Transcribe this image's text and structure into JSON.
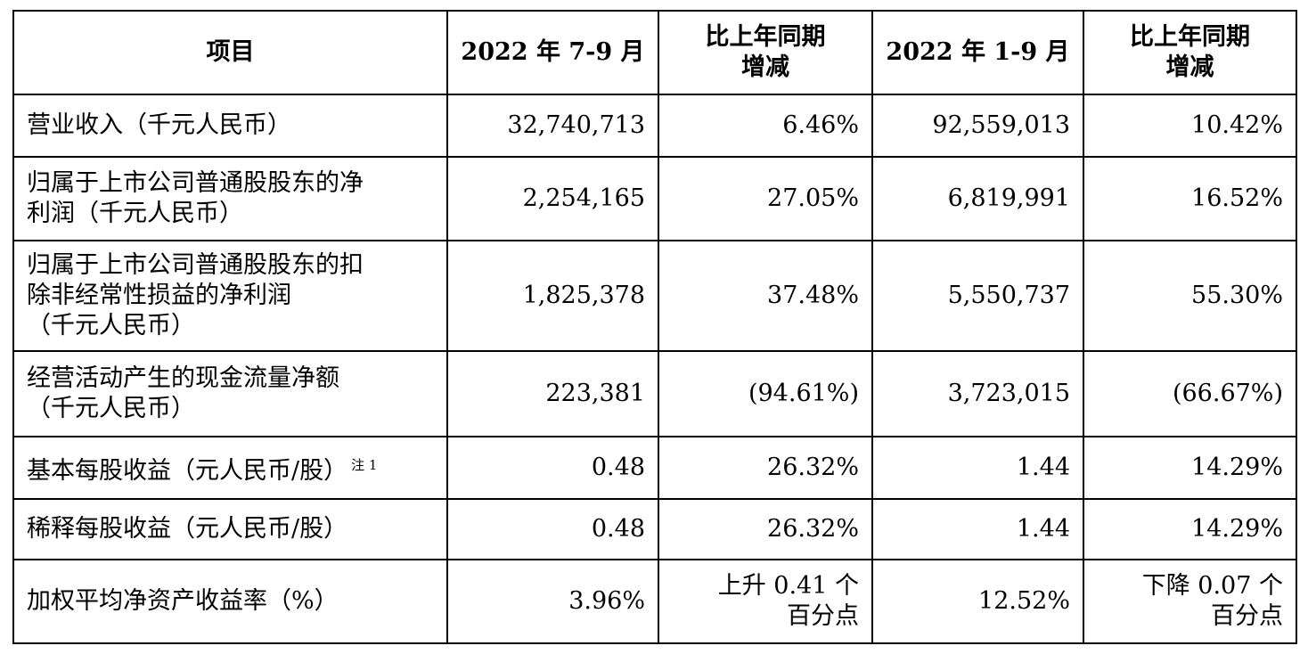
{
  "table": {
    "headers": [
      "项目",
      "2022 年 7-9 月",
      "比上年同期增减",
      "2022 年 1-9 月",
      "比上年同期增减"
    ],
    "header_lines": [
      [
        "项目"
      ],
      [
        "2022 年 7-9 月"
      ],
      [
        "比上年同期",
        "增减"
      ],
      [
        "2022 年 1-9 月"
      ],
      [
        "比上年同期",
        "增减"
      ]
    ],
    "rows": [
      {
        "item": "营业收入（千元人民币）",
        "q3": "32,740,713",
        "q3_change": "6.46%",
        "ytd": "92,559,013",
        "ytd_change": "10.42%"
      },
      {
        "item": "归属于上市公司普通股股东的净利润（千元人民币）",
        "q3": "2,254,165",
        "q3_change": "27.05%",
        "ytd": "6,819,991",
        "ytd_change": "16.52%"
      },
      {
        "item": "归属于上市公司普通股股东的扣除非经常性损益的净利润（千元人民币）",
        "q3": "1,825,378",
        "q3_change": "37.48%",
        "ytd": "5,550,737",
        "ytd_change": "55.30%"
      },
      {
        "item": "经营活动产生的现金流量净额（千元人民币）",
        "q3": "223,381",
        "q3_change": "(94.61%)",
        "ytd": "3,723,015",
        "ytd_change": "(66.67%)"
      },
      {
        "item": "基本每股收益（元人民币/股）",
        "note": "注 1",
        "q3": "0.48",
        "q3_change": "26.32%",
        "ytd": "1.44",
        "ytd_change": "14.29%"
      },
      {
        "item": "稀释每股收益（元人民币/股）",
        "q3": "0.48",
        "q3_change": "26.32%",
        "ytd": "1.44",
        "ytd_change": "14.29%"
      },
      {
        "item": "加权平均净资产收益率（%）",
        "q3": "3.96%",
        "q3_change": "上升 0.41 个百分点",
        "ytd": "12.52%",
        "ytd_change": "下降 0.07 个百分点"
      }
    ],
    "row_lines": [
      {
        "item": [
          "营业收入（千元人民币）"
        ],
        "q3_change": [
          "6.46%"
        ],
        "ytd_change": [
          "10.42%"
        ]
      },
      {
        "item": [
          "归属于上市公司普通股股东的净",
          "利润（千元人民币）"
        ],
        "q3_change": [
          "27.05%"
        ],
        "ytd_change": [
          "16.52%"
        ]
      },
      {
        "item": [
          "归属于上市公司普通股股东的扣",
          "除非经常性损益的净利润",
          "（千元人民币）"
        ],
        "q3_change": [
          "37.48%"
        ],
        "ytd_change": [
          "55.30%"
        ]
      },
      {
        "item": [
          "经营活动产生的现金流量净额",
          "（千元人民币）"
        ],
        "q3_change": [
          "(94.61%)"
        ],
        "ytd_change": [
          "(66.67%)"
        ]
      },
      {
        "item": [
          "基本每股收益（元人民币/股）"
        ],
        "q3_change": [
          "26.32%"
        ],
        "ytd_change": [
          "14.29%"
        ]
      },
      {
        "item": [
          "稀释每股收益（元人民币/股）"
        ],
        "q3_change": [
          "26.32%"
        ],
        "ytd_change": [
          "14.29%"
        ]
      },
      {
        "item": [
          "加权平均净资产收益率（%）"
        ],
        "q3_change": [
          "上升 0.41 个",
          "百分点"
        ],
        "ytd_change": [
          "下降 0.07 个",
          "百分点"
        ]
      }
    ]
  }
}
